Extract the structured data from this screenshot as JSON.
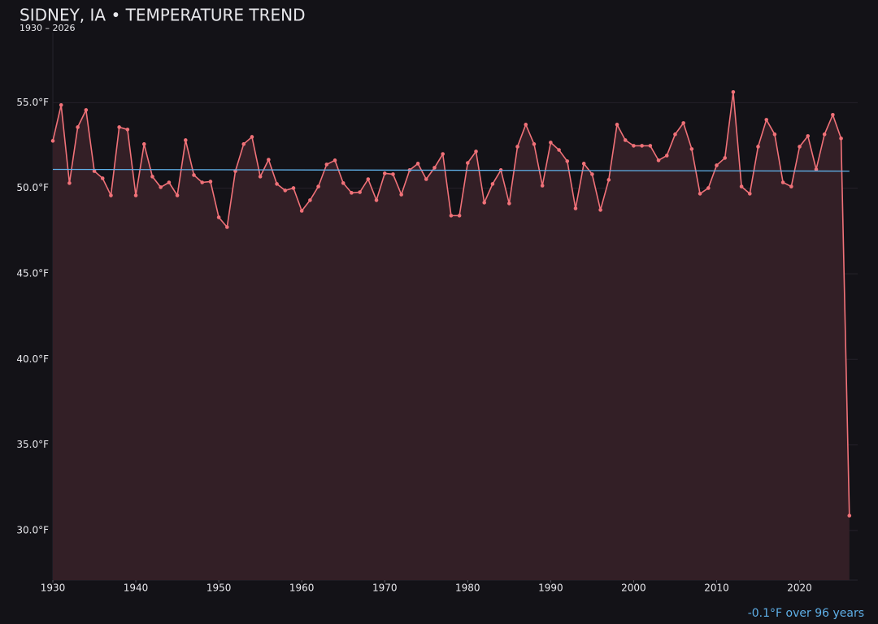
{
  "chart_data": {
    "type": "line",
    "title": "SIDNEY, IA • TEMPERATURE TREND",
    "subtitle": "1930 – 2026",
    "annotation": "-0.1°F over 96 years",
    "grid": true,
    "x": [
      1930,
      1931,
      1932,
      1933,
      1934,
      1935,
      1936,
      1937,
      1938,
      1939,
      1940,
      1941,
      1942,
      1943,
      1944,
      1945,
      1946,
      1947,
      1948,
      1949,
      1950,
      1951,
      1952,
      1953,
      1954,
      1955,
      1956,
      1957,
      1958,
      1959,
      1960,
      1961,
      1962,
      1963,
      1964,
      1965,
      1966,
      1967,
      1968,
      1969,
      1970,
      1971,
      1972,
      1973,
      1974,
      1975,
      1976,
      1977,
      1978,
      1979,
      1980,
      1981,
      1982,
      1983,
      1984,
      1985,
      1986,
      1987,
      1988,
      1989,
      1990,
      1991,
      1992,
      1993,
      1994,
      1995,
      1996,
      1997,
      1998,
      1999,
      2000,
      2001,
      2002,
      2003,
      2004,
      2005,
      2006,
      2007,
      2008,
      2009,
      2010,
      2011,
      2012,
      2013,
      2014,
      2015,
      2016,
      2017,
      2018,
      2019,
      2020,
      2021,
      2022,
      2023,
      2024,
      2025,
      2026
    ],
    "series": [
      {
        "color": "#f07178",
        "values": [
          52.77,
          54.86,
          50.3,
          53.57,
          54.57,
          51.0,
          50.58,
          49.58,
          53.57,
          53.43,
          49.58,
          52.58,
          50.68,
          50.06,
          50.34,
          49.58,
          52.81,
          50.77,
          50.34,
          50.39,
          48.3,
          47.73,
          51.0,
          52.58,
          53.0,
          50.68,
          51.67,
          50.25,
          49.87,
          50.01,
          48.68,
          49.3,
          50.1,
          51.39,
          51.63,
          50.3,
          49.73,
          49.77,
          50.53,
          49.3,
          50.87,
          50.82,
          49.63,
          51.06,
          51.44,
          50.53,
          51.2,
          52.0,
          48.4,
          48.4,
          51.48,
          52.15,
          49.16,
          50.25,
          51.06,
          49.11,
          52.43,
          53.72,
          52.58,
          50.15,
          52.67,
          52.24,
          51.58,
          48.82,
          51.44,
          50.82,
          48.73,
          50.49,
          53.72,
          52.81,
          52.48,
          52.48,
          52.48,
          51.63,
          51.91,
          53.15,
          53.81,
          52.29,
          49.68,
          50.01,
          51.34,
          51.77,
          55.62,
          50.1,
          49.68,
          52.43,
          54.0,
          53.15,
          50.34,
          50.1,
          52.43,
          53.05,
          51.1,
          53.15,
          54.29,
          52.91,
          30.87
        ]
      }
    ],
    "area_color": "#331f26",
    "trend_line": {
      "color": "#5fb0e8",
      "x": [
        1930,
        2026
      ],
      "values": [
        51.1,
        51.0
      ]
    },
    "xlim": [
      1930,
      2027
    ],
    "xticks": [
      1930,
      1940,
      1950,
      1960,
      1970,
      1980,
      1990,
      2000,
      2010,
      2020
    ],
    "ylim": [
      27.1,
      59.1
    ],
    "yticks": [
      {
        "value": 30,
        "label": "30.0°F"
      },
      {
        "value": 35,
        "label": "35.0°F"
      },
      {
        "value": 40,
        "label": "40.0°F"
      },
      {
        "value": 45,
        "label": "45.0°F"
      },
      {
        "value": 50,
        "label": "50.0°F"
      },
      {
        "value": 55,
        "label": "55.0°F"
      }
    ]
  }
}
